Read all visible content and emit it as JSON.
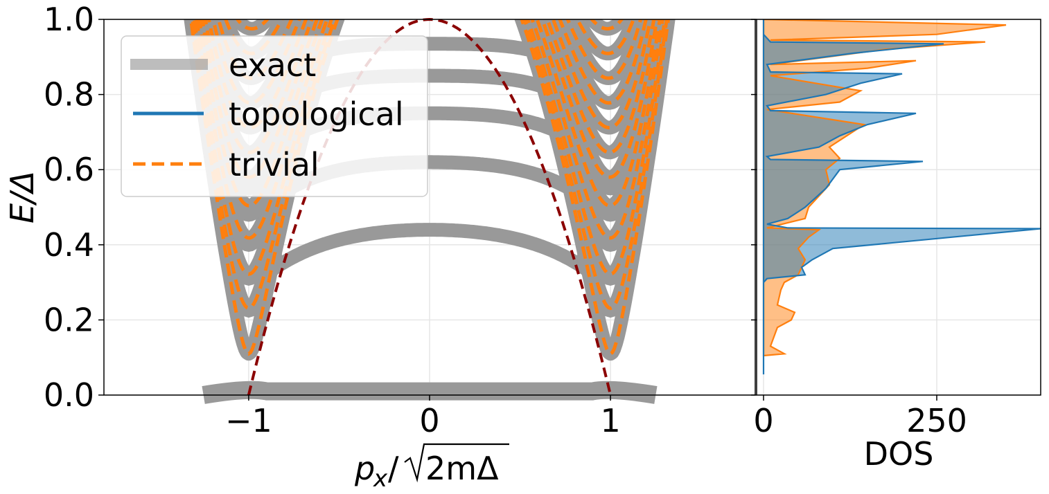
{
  "colors": {
    "exact": "#999999",
    "topological": "#1f77b4",
    "trivial": "#ff7f0e",
    "analytic": "#8b0000",
    "dos_overlap": "#8c959a",
    "grid": "#e6e6e6"
  },
  "chart_data": [
    {
      "type": "line",
      "panel": "band-structure",
      "xlabel_base": "p",
      "xlabel_sub": "x",
      "xlabel_sqrt": "2mΔ",
      "ylabel": "E/Δ",
      "xlim": [
        -1.8,
        1.8
      ],
      "ylim": [
        0.0,
        1.0
      ],
      "xticks": [
        -1,
        0,
        1
      ],
      "xtick_labels": [
        "−1",
        "0",
        "1"
      ],
      "yticks": [
        0.0,
        0.2,
        0.4,
        0.6,
        0.8,
        1.0
      ],
      "ytick_labels": [
        "0.0",
        "0.2",
        "0.4",
        "0.6",
        "0.8",
        "1.0"
      ],
      "grid": true,
      "legend_position": "top-left",
      "legend": [
        {
          "name": "exact",
          "style": "thick grey solid"
        },
        {
          "name": "topological",
          "style": "blue solid"
        },
        {
          "name": "trivial",
          "style": "orange dashed"
        }
      ],
      "topological_band_maxima": [
        0.44,
        0.62,
        0.75,
        0.85,
        0.935
      ],
      "trivial_band_minima": [
        0.11,
        0.225,
        0.31,
        0.4,
        0.48,
        0.55,
        0.61,
        0.67,
        0.73,
        0.79,
        0.85,
        0.91
      ],
      "zero_mode_energy": 0.0,
      "analytic_curve": "E/Δ = 1 − p²",
      "analytic_endpoints": [
        -1,
        1
      ]
    },
    {
      "type": "area",
      "panel": "density-of-states",
      "xlabel": "DOS",
      "xlim": [
        0,
        400
      ],
      "ylim": [
        0.0,
        1.0
      ],
      "xticks": [
        0,
        250
      ],
      "xtick_labels": [
        "0",
        "250"
      ],
      "grid": true,
      "series": [
        {
          "name": "topological",
          "points": [
            [
              0,
              0.055
            ],
            [
              0,
              0.3
            ],
            [
              5,
              0.31
            ],
            [
              60,
              0.32
            ],
            [
              55,
              0.34
            ],
            [
              70,
              0.36
            ],
            [
              100,
              0.39
            ],
            [
              400,
              0.443
            ],
            [
              35,
              0.445
            ],
            [
              5,
              0.455
            ],
            [
              35,
              0.47
            ],
            [
              60,
              0.5
            ],
            [
              90,
              0.55
            ],
            [
              110,
              0.6
            ],
            [
              230,
              0.622
            ],
            [
              10,
              0.627
            ],
            [
              5,
              0.635
            ],
            [
              80,
              0.66
            ],
            [
              110,
              0.69
            ],
            [
              150,
              0.72
            ],
            [
              220,
              0.75
            ],
            [
              10,
              0.757
            ],
            [
              5,
              0.77
            ],
            [
              90,
              0.8
            ],
            [
              140,
              0.83
            ],
            [
              200,
              0.855
            ],
            [
              10,
              0.86
            ],
            [
              5,
              0.88
            ],
            [
              130,
              0.91
            ],
            [
              260,
              0.935
            ],
            [
              10,
              0.94
            ],
            [
              0,
              0.96
            ],
            [
              0,
              1.0
            ]
          ]
        },
        {
          "name": "trivial",
          "points": [
            [
              0,
              0.105
            ],
            [
              30,
              0.11
            ],
            [
              10,
              0.13
            ],
            [
              20,
              0.18
            ],
            [
              40,
              0.2
            ],
            [
              45,
              0.22
            ],
            [
              20,
              0.24
            ],
            [
              25,
              0.28
            ],
            [
              30,
              0.3
            ],
            [
              50,
              0.32
            ],
            [
              60,
              0.36
            ],
            [
              50,
              0.39
            ],
            [
              65,
              0.42
            ],
            [
              80,
              0.44
            ],
            [
              5,
              0.445
            ],
            [
              60,
              0.47
            ],
            [
              65,
              0.5
            ],
            [
              80,
              0.53
            ],
            [
              95,
              0.56
            ],
            [
              90,
              0.6
            ],
            [
              110,
              0.63
            ],
            [
              95,
              0.66
            ],
            [
              120,
              0.69
            ],
            [
              145,
              0.72
            ],
            [
              5,
              0.76
            ],
            [
              110,
              0.78
            ],
            [
              140,
              0.81
            ],
            [
              10,
              0.85
            ],
            [
              150,
              0.87
            ],
            [
              220,
              0.89
            ],
            [
              10,
              0.88
            ],
            [
              175,
              0.92
            ],
            [
              320,
              0.94
            ],
            [
              10,
              0.945
            ],
            [
              250,
              0.96
            ],
            [
              350,
              0.985
            ],
            [
              0,
              1.0
            ]
          ]
        }
      ]
    }
  ]
}
